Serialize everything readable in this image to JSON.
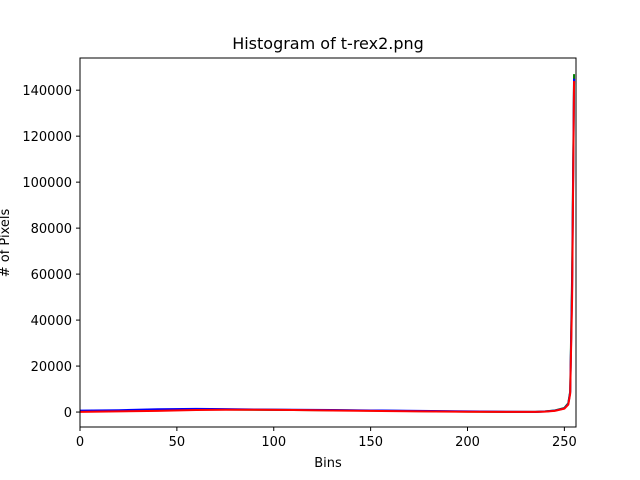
{
  "chart_data": {
    "type": "line",
    "title": "Histogram of t-rex2.png",
    "xlabel": "Bins",
    "ylabel": "# of Pixels",
    "xlim": [
      0,
      256
    ],
    "ylim": [
      -6500,
      154000
    ],
    "xticks": [
      0,
      50,
      100,
      150,
      200,
      250
    ],
    "yticks": [
      0,
      20000,
      40000,
      60000,
      80000,
      100000,
      120000,
      140000
    ],
    "grid": false,
    "legend": "none",
    "series": [
      {
        "color": "#008000",
        "x": [
          0,
          20,
          40,
          60,
          75,
          90,
          110,
          130,
          150,
          175,
          200,
          220,
          235,
          240,
          245,
          250,
          252,
          253,
          254,
          255
        ],
        "y": [
          300,
          500,
          900,
          1200,
          1100,
          1000,
          900,
          800,
          600,
          400,
          200,
          100,
          100,
          300,
          700,
          1800,
          3800,
          9000,
          60000,
          147000
        ]
      },
      {
        "color": "#0000ff",
        "x": [
          0,
          20,
          40,
          60,
          75,
          90,
          110,
          130,
          150,
          175,
          200,
          220,
          235,
          240,
          245,
          250,
          252,
          253,
          254,
          255
        ],
        "y": [
          600,
          800,
          1200,
          1400,
          1300,
          1100,
          1000,
          900,
          700,
          500,
          300,
          150,
          100,
          250,
          600,
          1600,
          3500,
          8500,
          55000,
          145000
        ]
      },
      {
        "color": "#ff0000",
        "x": [
          0,
          20,
          40,
          60,
          75,
          90,
          110,
          130,
          150,
          175,
          200,
          220,
          235,
          240,
          245,
          250,
          252,
          253,
          254,
          255
        ],
        "y": [
          100,
          300,
          500,
          900,
          1000,
          1000,
          900,
          700,
          500,
          300,
          150,
          100,
          100,
          200,
          500,
          1500,
          3200,
          8000,
          50000,
          144000
        ]
      }
    ]
  }
}
